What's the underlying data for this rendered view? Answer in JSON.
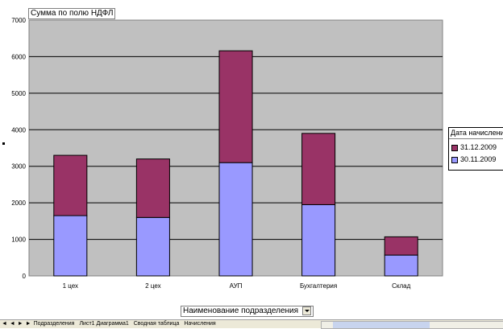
{
  "chart_data": {
    "type": "bar",
    "stacked": true,
    "categories": [
      "1 цех",
      "2 цех",
      "АУП",
      "Бухгалтерия",
      "Склад"
    ],
    "series": [
      {
        "name": "30.11.2009",
        "values": [
          1650,
          1600,
          3100,
          1950,
          570
        ],
        "color": "#9999ff"
      },
      {
        "name": "31.12.2009",
        "values": [
          1650,
          1600,
          3060,
          1950,
          500
        ],
        "color": "#993366"
      }
    ],
    "ylim": [
      0,
      7000
    ],
    "yticks": [
      "0",
      "1000",
      "2000",
      "3000",
      "4000",
      "5000",
      "6000",
      "7000"
    ],
    "grid": true,
    "legend_position": "right",
    "plot_background": "#c0c0c0"
  },
  "data_field": {
    "label": "Сумма по полю НДФЛ"
  },
  "category_field": {
    "label": "Наименование подразделения"
  },
  "legend": {
    "title": "Дата начисления"
  },
  "sheets": {
    "nav": [
      "◄",
      "◄",
      "►",
      "►"
    ],
    "tabs": [
      "Подразделения",
      "Лист1 Диаграмма1",
      "Сводная таблица",
      "Начисления"
    ]
  }
}
